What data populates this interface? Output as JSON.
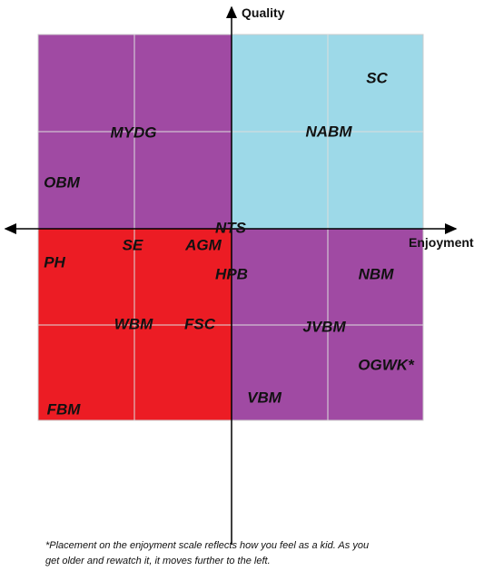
{
  "axes": {
    "y": "Quality",
    "x": "Enjoyment"
  },
  "items": [
    "SC",
    "NABM",
    "MYDG",
    "OBM",
    "NTS",
    "SE",
    "AGM",
    "PH",
    "HPB",
    "NBM",
    "WBM",
    "FSC",
    "JVBM",
    "OGWK*",
    "VBM",
    "FBM"
  ],
  "footnote": [
    "*Placement on the enjoyment scale reflects how you feel as a kid.  As you",
    "get older and rewatch it, it moves further to the left."
  ]
}
